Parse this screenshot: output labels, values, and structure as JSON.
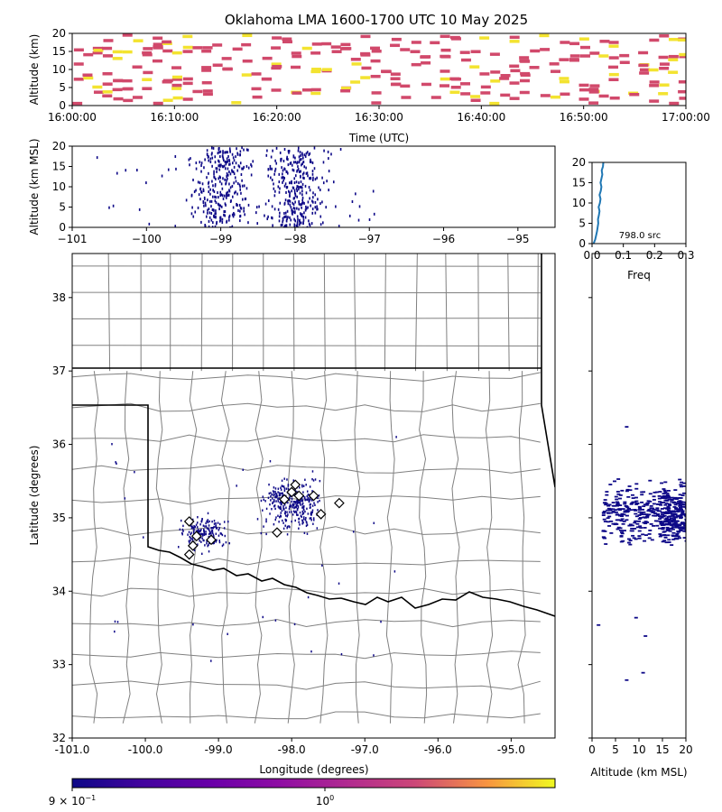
{
  "title": "Oklahoma LMA 1600-1700 UTC 10 May 2025",
  "chart_data": [
    {
      "id": "time-height",
      "type": "heatmap",
      "xlabel": "Time (UTC)",
      "ylabel": "Altitude (km)",
      "xlim": [
        "16:00:00",
        "17:00:00"
      ],
      "xticks": [
        "16:00:00",
        "16:10:00",
        "16:20:00",
        "16:30:00",
        "16:40:00",
        "16:50:00",
        "17:00:00"
      ],
      "ylim": [
        0,
        20
      ],
      "yticks": [
        "0",
        "5",
        "10",
        "15",
        "20"
      ]
    },
    {
      "id": "lon-alt",
      "type": "heatmap",
      "xlabel": "",
      "ylabel": "Altitude (km MSL)",
      "xlim": [
        -101,
        -94.5
      ],
      "xticks": [
        "−101",
        "−100",
        "−99",
        "−98",
        "−97",
        "−96",
        "−95"
      ],
      "ylim": [
        0,
        20
      ],
      "yticks": [
        "0",
        "5",
        "10",
        "15",
        "20"
      ]
    },
    {
      "id": "freq-alt",
      "type": "line",
      "xlabel": "Freq",
      "xlim": [
        0,
        0.3
      ],
      "xticks": [
        "0.0",
        "0.1",
        "0.2",
        "0.3"
      ],
      "ylim": [
        0,
        20
      ],
      "yticks": [
        "0",
        "5",
        "10",
        "15",
        "20"
      ],
      "annotation": "798.0 src",
      "x": [
        0.005,
        0.01,
        0.013,
        0.016,
        0.018,
        0.02,
        0.019,
        0.022,
        0.024,
        0.021,
        0.025,
        0.027,
        0.024,
        0.028,
        0.03,
        0.027,
        0.03,
        0.033,
        0.031,
        0.035,
        0.036
      ],
      "y": [
        0,
        1,
        2,
        3,
        4,
        5,
        6,
        7,
        8,
        9,
        10,
        11,
        12,
        13,
        14,
        15,
        16,
        17,
        18,
        19,
        20
      ]
    },
    {
      "id": "plan-view",
      "type": "scatter",
      "xlabel": "Longitude (degrees)",
      "ylabel": "Latitude (degrees)",
      "xlim": [
        -101.0,
        -94.4
      ],
      "xticks": [
        "-101.0",
        "-100.0",
        "-99.0",
        "-98.0",
        "-97.0",
        "-96.0",
        "-95.0"
      ],
      "ylim": [
        32,
        38.6
      ],
      "yticks": [
        "32",
        "33",
        "34",
        "35",
        "36",
        "37",
        "38"
      ],
      "stations": [
        [
          -99.4,
          34.95
        ],
        [
          -99.3,
          34.75
        ],
        [
          -99.35,
          34.62
        ],
        [
          -99.4,
          34.5
        ],
        [
          -99.1,
          34.7
        ],
        [
          -98.0,
          35.35
        ],
        [
          -97.95,
          35.45
        ],
        [
          -97.9,
          35.3
        ],
        [
          -97.7,
          35.3
        ],
        [
          -97.6,
          35.05
        ],
        [
          -97.35,
          35.2
        ],
        [
          -98.1,
          35.25
        ],
        [
          -98.2,
          34.8
        ]
      ]
    },
    {
      "id": "alt-lat",
      "type": "heatmap",
      "xlabel": "Altitude (km MSL)",
      "xlim": [
        0,
        20
      ],
      "xticks": [
        "0",
        "5",
        "10",
        "15",
        "20"
      ]
    },
    {
      "id": "colorbar",
      "type": "colorbar",
      "ticks": [
        "9 × 10",
        "−1",
        "10",
        "0"
      ]
    }
  ]
}
